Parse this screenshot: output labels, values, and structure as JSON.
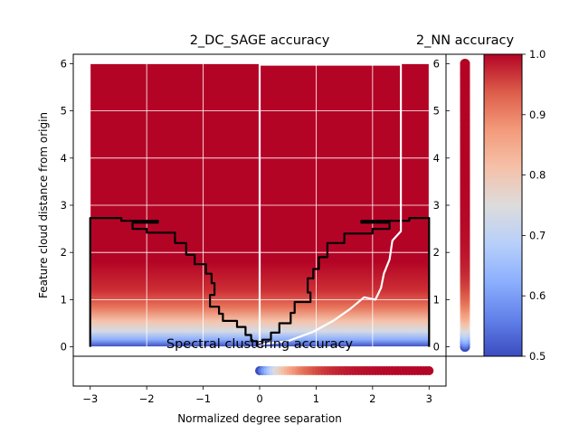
{
  "chart_data": [
    {
      "type": "heatmap",
      "title": "2_DC_SAGE accuracy",
      "xlabel": "Normalized degree separation",
      "ylabel": "Feature cloud distance from origin",
      "xlim": [
        -3.3,
        3.3
      ],
      "ylim": [
        -0.2,
        6.2
      ],
      "xticks": [
        "−3",
        "−2",
        "−1",
        "0",
        "1",
        "2",
        "3"
      ],
      "yticks": [
        "0",
        "1",
        "2",
        "3",
        "4",
        "5",
        "6"
      ],
      "grid": true,
      "colormap": "coolwarm",
      "x_range": [
        -3,
        3
      ],
      "y_range": [
        0,
        6
      ],
      "note_field": "accuracy ~1.0 for y above about 1.5; falls toward 0.5 near y = 0",
      "contours": [
        {
          "color": "#000000",
          "points": [
            [
              -3.0,
              0.0
            ],
            [
              -3.0,
              2.73
            ],
            [
              -2.45,
              2.73
            ],
            [
              -2.45,
              2.67
            ],
            [
              -1.8,
              2.67
            ],
            [
              -1.8,
              2.63
            ],
            [
              -2.25,
              2.63
            ],
            [
              -2.25,
              2.5
            ],
            [
              -2.0,
              2.5
            ],
            [
              -2.0,
              2.42
            ],
            [
              -1.5,
              2.42
            ],
            [
              -1.5,
              2.2
            ],
            [
              -1.3,
              2.2
            ],
            [
              -1.3,
              1.95
            ],
            [
              -1.15,
              1.95
            ],
            [
              -1.15,
              1.75
            ],
            [
              -0.95,
              1.75
            ],
            [
              -0.95,
              1.55
            ],
            [
              -0.85,
              1.55
            ],
            [
              -0.85,
              1.35
            ],
            [
              -0.8,
              1.35
            ],
            [
              -0.8,
              1.1
            ],
            [
              -0.88,
              1.1
            ],
            [
              -0.88,
              0.85
            ],
            [
              -0.72,
              0.85
            ],
            [
              -0.72,
              0.7
            ],
            [
              -0.65,
              0.7
            ],
            [
              -0.65,
              0.55
            ],
            [
              -0.4,
              0.55
            ],
            [
              -0.4,
              0.42
            ],
            [
              -0.25,
              0.42
            ],
            [
              -0.25,
              0.25
            ],
            [
              -0.15,
              0.25
            ],
            [
              -0.15,
              0.12
            ],
            [
              -0.05,
              0.12
            ],
            [
              -0.05,
              0.0
            ]
          ]
        },
        {
          "color": "#000000",
          "points": [
            [
              3.0,
              0.0
            ],
            [
              3.0,
              2.73
            ],
            [
              2.65,
              2.73
            ],
            [
              2.65,
              2.67
            ],
            [
              1.8,
              2.67
            ],
            [
              1.8,
              2.63
            ],
            [
              2.3,
              2.63
            ],
            [
              2.3,
              2.5
            ],
            [
              2.0,
              2.5
            ],
            [
              2.0,
              2.4
            ],
            [
              1.5,
              2.4
            ],
            [
              1.5,
              2.2
            ],
            [
              1.2,
              2.2
            ],
            [
              1.2,
              1.9
            ],
            [
              1.05,
              1.9
            ],
            [
              1.05,
              1.65
            ],
            [
              0.95,
              1.65
            ],
            [
              0.95,
              1.45
            ],
            [
              0.85,
              1.45
            ],
            [
              0.85,
              1.15
            ],
            [
              0.9,
              1.15
            ],
            [
              0.9,
              0.95
            ],
            [
              0.62,
              0.95
            ],
            [
              0.62,
              0.72
            ],
            [
              0.55,
              0.72
            ],
            [
              0.55,
              0.5
            ],
            [
              0.35,
              0.5
            ],
            [
              0.35,
              0.3
            ],
            [
              0.2,
              0.3
            ],
            [
              0.2,
              0.15
            ],
            [
              0.05,
              0.15
            ],
            [
              0.05,
              0.0
            ]
          ]
        },
        {
          "color": "#ffffff",
          "points": [
            [
              0.0,
              0.05
            ],
            [
              0.0,
              5.98
            ],
            [
              2.5,
              5.98
            ],
            [
              2.5,
              2.45
            ],
            [
              2.35,
              2.25
            ],
            [
              2.3,
              1.85
            ],
            [
              2.2,
              1.55
            ],
            [
              2.15,
              1.25
            ],
            [
              2.05,
              1.0
            ],
            [
              1.85,
              1.05
            ],
            [
              1.6,
              0.8
            ],
            [
              1.3,
              0.55
            ],
            [
              0.95,
              0.32
            ],
            [
              0.5,
              0.12
            ],
            [
              0.0,
              0.05
            ]
          ]
        }
      ]
    },
    {
      "type": "scatter",
      "title": "2_NN accuracy",
      "yticks": [
        "0",
        "1",
        "2",
        "3",
        "4",
        "5",
        "6"
      ],
      "x": [
        0,
        0,
        0,
        0,
        0,
        0,
        0
      ],
      "y": [
        0,
        1,
        2,
        3,
        4,
        5,
        6
      ],
      "colormap": "coolwarm"
    },
    {
      "type": "scatter",
      "title": "Spectral clustering accuracy",
      "x": [
        0,
        0.5,
        1,
        1.5,
        2,
        2.5,
        3
      ],
      "y": [
        0,
        0,
        0,
        0,
        0,
        0,
        0
      ],
      "colormap": "coolwarm"
    },
    {
      "type": "colorbar",
      "colormap": "coolwarm",
      "ylim": [
        0.5,
        1.0
      ],
      "ticks": [
        "0.5",
        "0.6",
        "0.7",
        "0.8",
        "0.9",
        "1.0"
      ]
    }
  ]
}
